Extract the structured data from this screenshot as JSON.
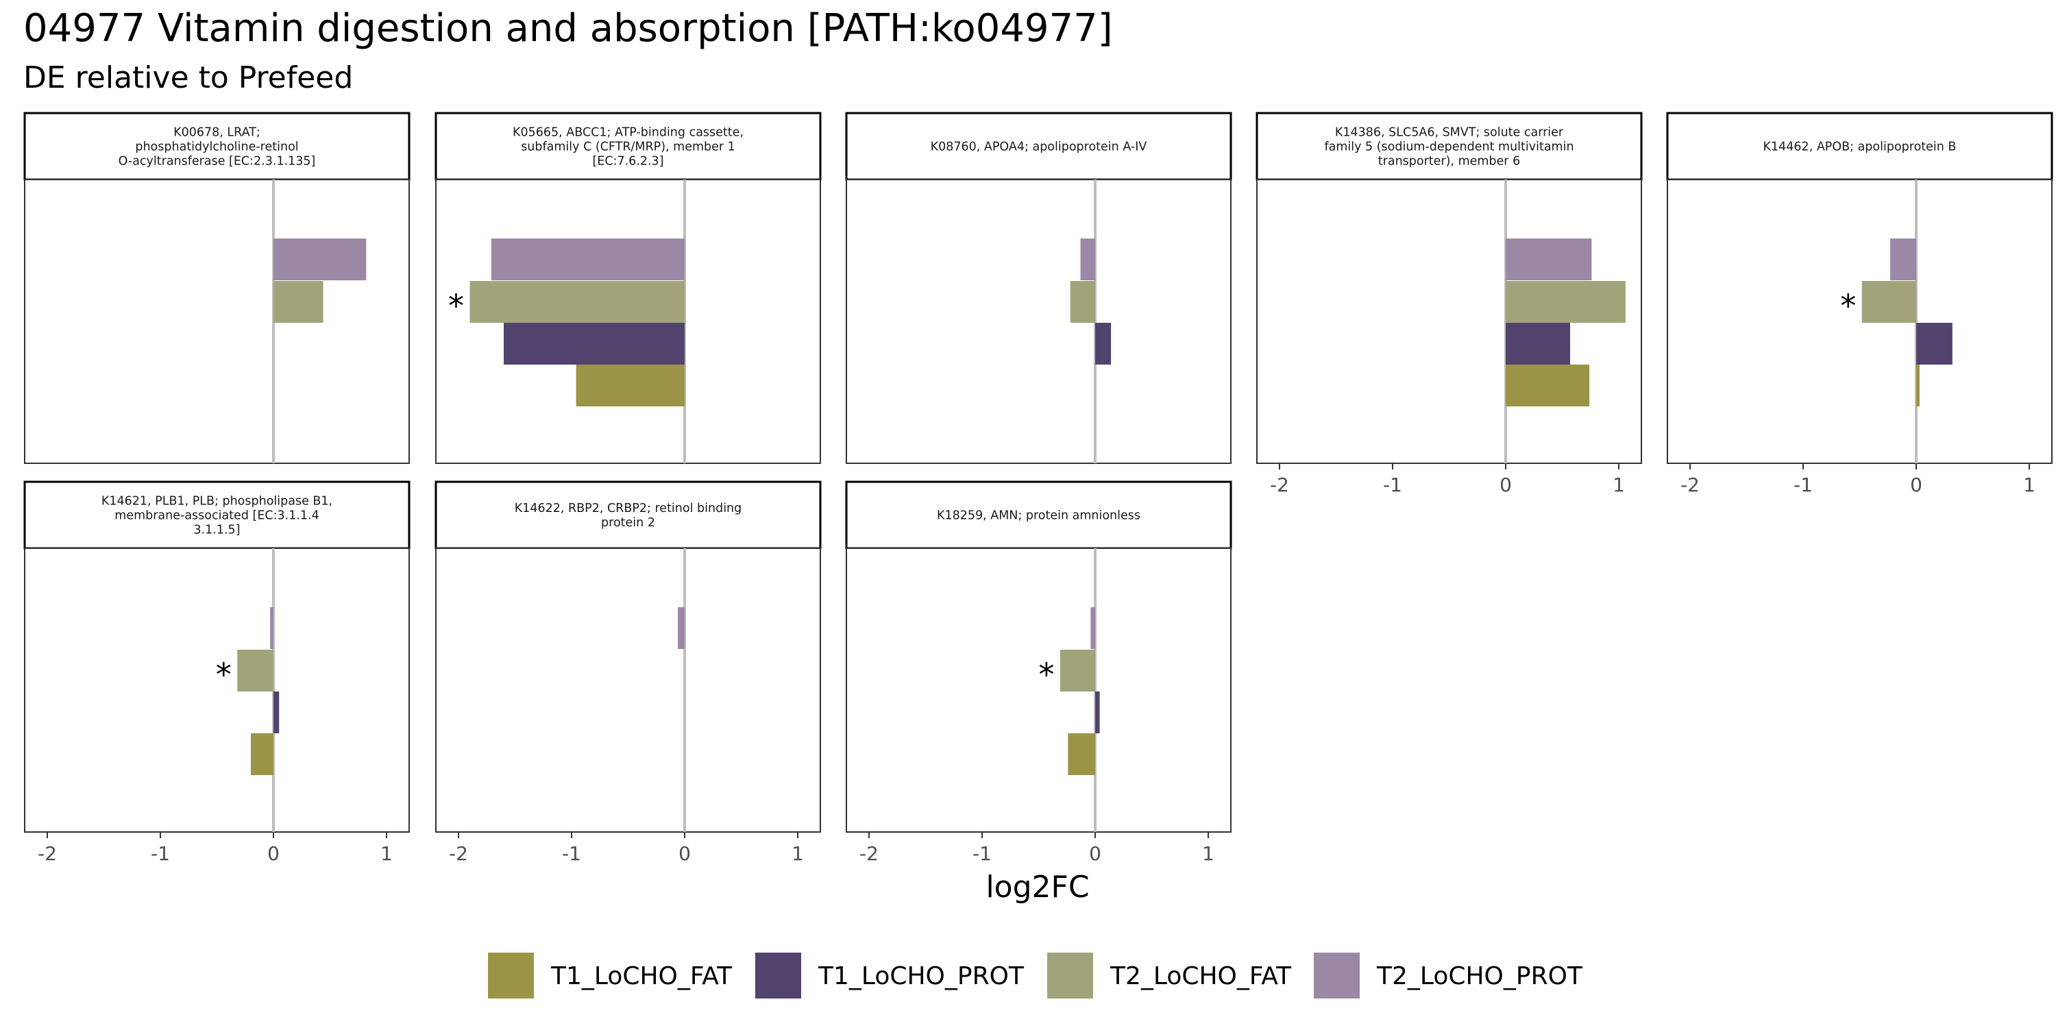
{
  "title": "04977 Vitamin digestion and absorption [PATH:ko04977]",
  "subtitle": "DE relative to Prefeed",
  "chart_data": {
    "type": "bar",
    "orientation": "horizontal",
    "facets": true,
    "xlabel": "log2FC",
    "ylabel": "",
    "xlim": [
      -2.2,
      1.2
    ],
    "x_ticks": [
      "-2",
      "-1",
      "0",
      "1"
    ],
    "grid": false,
    "legend_position": "bottom",
    "series": [
      {
        "name": "T1_LoCHO_FAT",
        "color": "#9B9447"
      },
      {
        "name": "T1_LoCHO_PROT",
        "color": "#52436E"
      },
      {
        "name": "T2_LoCHO_FAT",
        "color": "#A1A47A"
      },
      {
        "name": "T2_LoCHO_PROT",
        "color": "#9B88A5"
      }
    ],
    "panels": [
      {
        "strip": [
          "K00678, LRAT;",
          "phosphatidylcholine-retinol",
          "O-acyltransferase [EC:2.3.1.135]"
        ],
        "values": {
          "T1_LoCHO_FAT": null,
          "T1_LoCHO_PROT": null,
          "T2_LoCHO_FAT": 0.44,
          "T2_LoCHO_PROT": 0.82
        },
        "significant": []
      },
      {
        "strip": [
          "K05665, ABCC1; ATP-binding cassette,",
          "subfamily C (CFTR/MRP), member 1",
          "[EC:7.6.2.3]"
        ],
        "values": {
          "T1_LoCHO_FAT": -0.96,
          "T1_LoCHO_PROT": -1.6,
          "T2_LoCHO_FAT": -1.9,
          "T2_LoCHO_PROT": -1.71
        },
        "significant": [
          "T2_LoCHO_FAT"
        ]
      },
      {
        "strip": [
          "K08760, APOA4; apolipoprotein A-IV"
        ],
        "values": {
          "T1_LoCHO_FAT": null,
          "T1_LoCHO_PROT": 0.14,
          "T2_LoCHO_FAT": -0.22,
          "T2_LoCHO_PROT": -0.13
        },
        "significant": []
      },
      {
        "strip": [
          "K14386, SLC5A6, SMVT; solute carrier",
          "family 5 (sodium-dependent multivitamin",
          "transporter), member 6"
        ],
        "values": {
          "T1_LoCHO_FAT": 0.74,
          "T1_LoCHO_PROT": 0.57,
          "T2_LoCHO_FAT": 1.06,
          "T2_LoCHO_PROT": 0.76
        },
        "significant": []
      },
      {
        "strip": [
          "K14462, APOB; apolipoprotein B"
        ],
        "values": {
          "T1_LoCHO_FAT": 0.03,
          "T1_LoCHO_PROT": 0.32,
          "T2_LoCHO_FAT": -0.48,
          "T2_LoCHO_PROT": -0.23
        },
        "significant": [
          "T2_LoCHO_FAT"
        ]
      },
      {
        "strip": [
          "K14621, PLB1, PLB; phospholipase B1,",
          "membrane-associated [EC:3.1.1.4",
          "3.1.1.5]"
        ],
        "values": {
          "T1_LoCHO_FAT": -0.2,
          "T1_LoCHO_PROT": 0.05,
          "T2_LoCHO_FAT": -0.32,
          "T2_LoCHO_PROT": -0.03
        },
        "significant": [
          "T2_LoCHO_FAT"
        ]
      },
      {
        "strip": [
          "K14622, RBP2, CRBP2; retinol binding",
          "protein 2"
        ],
        "values": {
          "T1_LoCHO_FAT": null,
          "T1_LoCHO_PROT": null,
          "T2_LoCHO_FAT": null,
          "T2_LoCHO_PROT": -0.06
        },
        "significant": []
      },
      {
        "strip": [
          "K18259, AMN; protein amnionless"
        ],
        "values": {
          "T1_LoCHO_FAT": -0.24,
          "T1_LoCHO_PROT": 0.04,
          "T2_LoCHO_FAT": -0.31,
          "T2_LoCHO_PROT": -0.04
        },
        "significant": [
          "T2_LoCHO_FAT"
        ]
      }
    ]
  }
}
